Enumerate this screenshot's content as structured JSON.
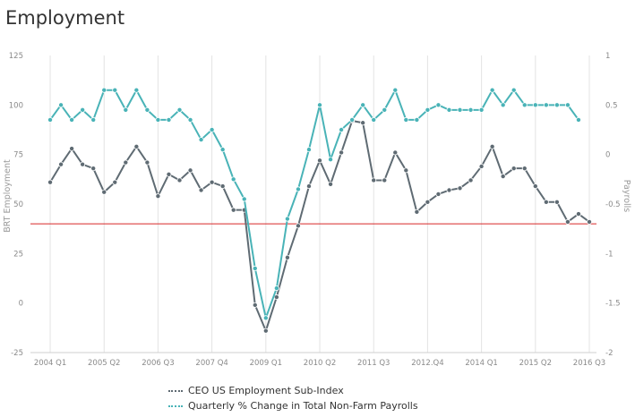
{
  "chart_data": {
    "type": "line",
    "title": "Employment",
    "ylabel": "BRT Employment",
    "y2label": "Payrolls",
    "ylim": [
      -25,
      125
    ],
    "y2lim": [
      -2,
      1
    ],
    "y_ticks": [
      "125",
      "100",
      "75",
      "50",
      "25",
      "0",
      "-25"
    ],
    "y2_ticks": [
      "1",
      "0.5",
      "0",
      "-0.5",
      "-1",
      "-1.5",
      "-2"
    ],
    "x_tick_labels": [
      "2004 Q1",
      "2005 Q2",
      "2006 Q3",
      "2007 Q4",
      "2009 Q1",
      "2010 Q2",
      "2011 Q3",
      "2012.Q4",
      "2014 Q1",
      "2015 Q2",
      "2016 Q3"
    ],
    "x_tick_positions": [
      1,
      6,
      11,
      16,
      21,
      26,
      31,
      36,
      41,
      46,
      51
    ],
    "x_count": 52,
    "reference_line": {
      "axis": "left",
      "value": 40,
      "color": "#d62728"
    },
    "grid": "vertical",
    "legend_position": "bottom",
    "series": [
      {
        "name": "CEO US Employment Sub-Index",
        "axis": "left",
        "color": "#5f6b73",
        "values": [
          61,
          70,
          78,
          70,
          68,
          56,
          61,
          71,
          79,
          71,
          54,
          65,
          62,
          67,
          57,
          61,
          59,
          47,
          47,
          -1,
          -14,
          3,
          23,
          39,
          59,
          72,
          60,
          76,
          92,
          91,
          62,
          62,
          76,
          67,
          46,
          51,
          55,
          57,
          58,
          62,
          69,
          79,
          64,
          68,
          68,
          59,
          51,
          51,
          41,
          45,
          41
        ]
      },
      {
        "name": "Quarterly % Change in Total Non-Farm Payrolls",
        "axis": "right",
        "color": "#49b3b7",
        "values": [
          0.35,
          0.5,
          0.35,
          0.45,
          0.35,
          0.65,
          0.65,
          0.45,
          0.65,
          0.45,
          0.35,
          0.35,
          0.45,
          0.35,
          0.15,
          0.25,
          0.05,
          -0.25,
          -0.45,
          -1.15,
          -1.65,
          -1.35,
          -0.65,
          -0.35,
          0.05,
          0.5,
          -0.05,
          0.25,
          0.35,
          0.5,
          0.35,
          0.45,
          0.65,
          0.35,
          0.35,
          0.45,
          0.5,
          0.45,
          0.45,
          0.45,
          0.45,
          0.65,
          0.5,
          0.65,
          0.5,
          0.5,
          0.5,
          0.5,
          0.5,
          0.35
        ]
      }
    ]
  }
}
